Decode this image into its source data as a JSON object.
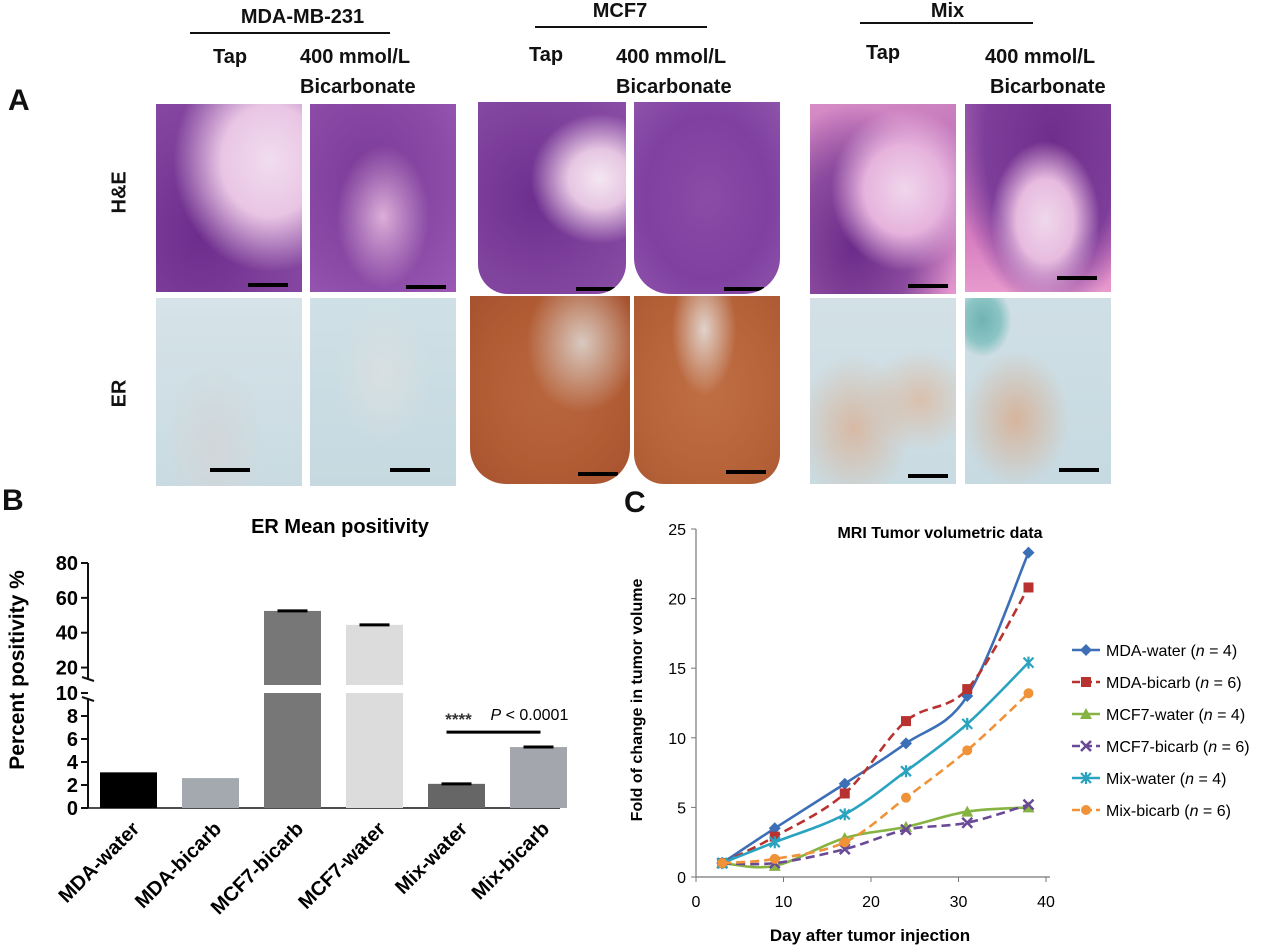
{
  "panel_labels": {
    "a": "A",
    "b": "B",
    "c": "C"
  },
  "panel_a": {
    "groups": [
      {
        "name": "MDA-MB-231",
        "tap": "Tap",
        "bicarb_line1": "400 mmol/L",
        "bicarb_line2": "Bicarbonate"
      },
      {
        "name": "MCF7",
        "tap": "Tap",
        "bicarb_line1": "400 mmol/L",
        "bicarb_line2": "Bicarbonate"
      },
      {
        "name": "Mix",
        "tap": "Tap",
        "bicarb_line1": "400 mmol/L",
        "bicarb_line2": "Bicarbonate"
      }
    ],
    "row_labels": {
      "he": "H&E",
      "er": "ER"
    },
    "colors": {
      "he_base": "#7d3f9a",
      "he_pink": "#e07bbd",
      "er_base": "#c9dbe2",
      "er_brown": "#b25c34"
    }
  },
  "chart_data": [
    {
      "type": "bar",
      "title": "ER Mean positivity",
      "ylabel": "Percent positivity %",
      "axis_break": {
        "lower": [
          0,
          10
        ],
        "upper": [
          10,
          80
        ]
      },
      "yticks_lower": [
        "0",
        "2",
        "4",
        "6",
        "8",
        "10"
      ],
      "yticks_upper": [
        "20",
        "40",
        "60",
        "80"
      ],
      "categories": [
        "MDA-water",
        "MDA-bicarb",
        "MCF7-bicarb",
        "MCF7-water",
        "Mix-water",
        "Mix-bicarb"
      ],
      "values": [
        3.1,
        2.6,
        52.5,
        44.5,
        2.1,
        5.3
      ],
      "colors": [
        "#000000",
        "#a4a9b0",
        "#777777",
        "#dcdcdc",
        "#666666",
        "#a3a7ad"
      ],
      "annotation": {
        "stars": "****",
        "p_italic": "P",
        "p_rest": " < 0.0001",
        "between": [
          "Mix-water",
          "Mix-bicarb"
        ]
      }
    },
    {
      "type": "line",
      "title": "MRI Tumor volumetric data",
      "xlabel": "Day after tumor injection",
      "ylabel": "Fold of change in tumor volume",
      "xlim": [
        0,
        40
      ],
      "ylim": [
        0,
        25
      ],
      "xticks": [
        0,
        10,
        20,
        30,
        40
      ],
      "yticks": [
        0,
        5,
        10,
        15,
        20,
        25
      ],
      "x": [
        3,
        9,
        17,
        24,
        31,
        38
      ],
      "legend_position": "right",
      "series": [
        {
          "name": "MDA-water",
          "n": "4",
          "color": "#3c6fb6",
          "dash": false,
          "marker": "diamond",
          "values": [
            1.0,
            3.5,
            6.7,
            9.6,
            13.0,
            23.3
          ]
        },
        {
          "name": "MDA-bicarb",
          "n": "6",
          "color": "#b8332f",
          "dash": true,
          "marker": "square",
          "values": [
            1.0,
            2.9,
            6.0,
            11.2,
            13.5,
            20.8
          ]
        },
        {
          "name": "MCF7-water",
          "n": "4",
          "color": "#86b342",
          "dash": false,
          "marker": "triangle",
          "values": [
            1.0,
            0.8,
            2.8,
            3.6,
            4.7,
            5.0
          ]
        },
        {
          "name": "MCF7-bicarb",
          "n": "6",
          "color": "#6a4a97",
          "dash": true,
          "marker": "x",
          "values": [
            1.0,
            1.0,
            2.0,
            3.4,
            3.9,
            5.2
          ]
        },
        {
          "name": "Mix-water",
          "n": "4",
          "color": "#2aa3c0",
          "dash": false,
          "marker": "star",
          "values": [
            1.0,
            2.5,
            4.5,
            7.6,
            11.0,
            15.4
          ]
        },
        {
          "name": "Mix-bicarb",
          "n": "6",
          "color": "#f09237",
          "dash": true,
          "marker": "circle",
          "values": [
            1.0,
            1.3,
            2.5,
            5.7,
            9.1,
            13.2
          ]
        }
      ]
    }
  ]
}
